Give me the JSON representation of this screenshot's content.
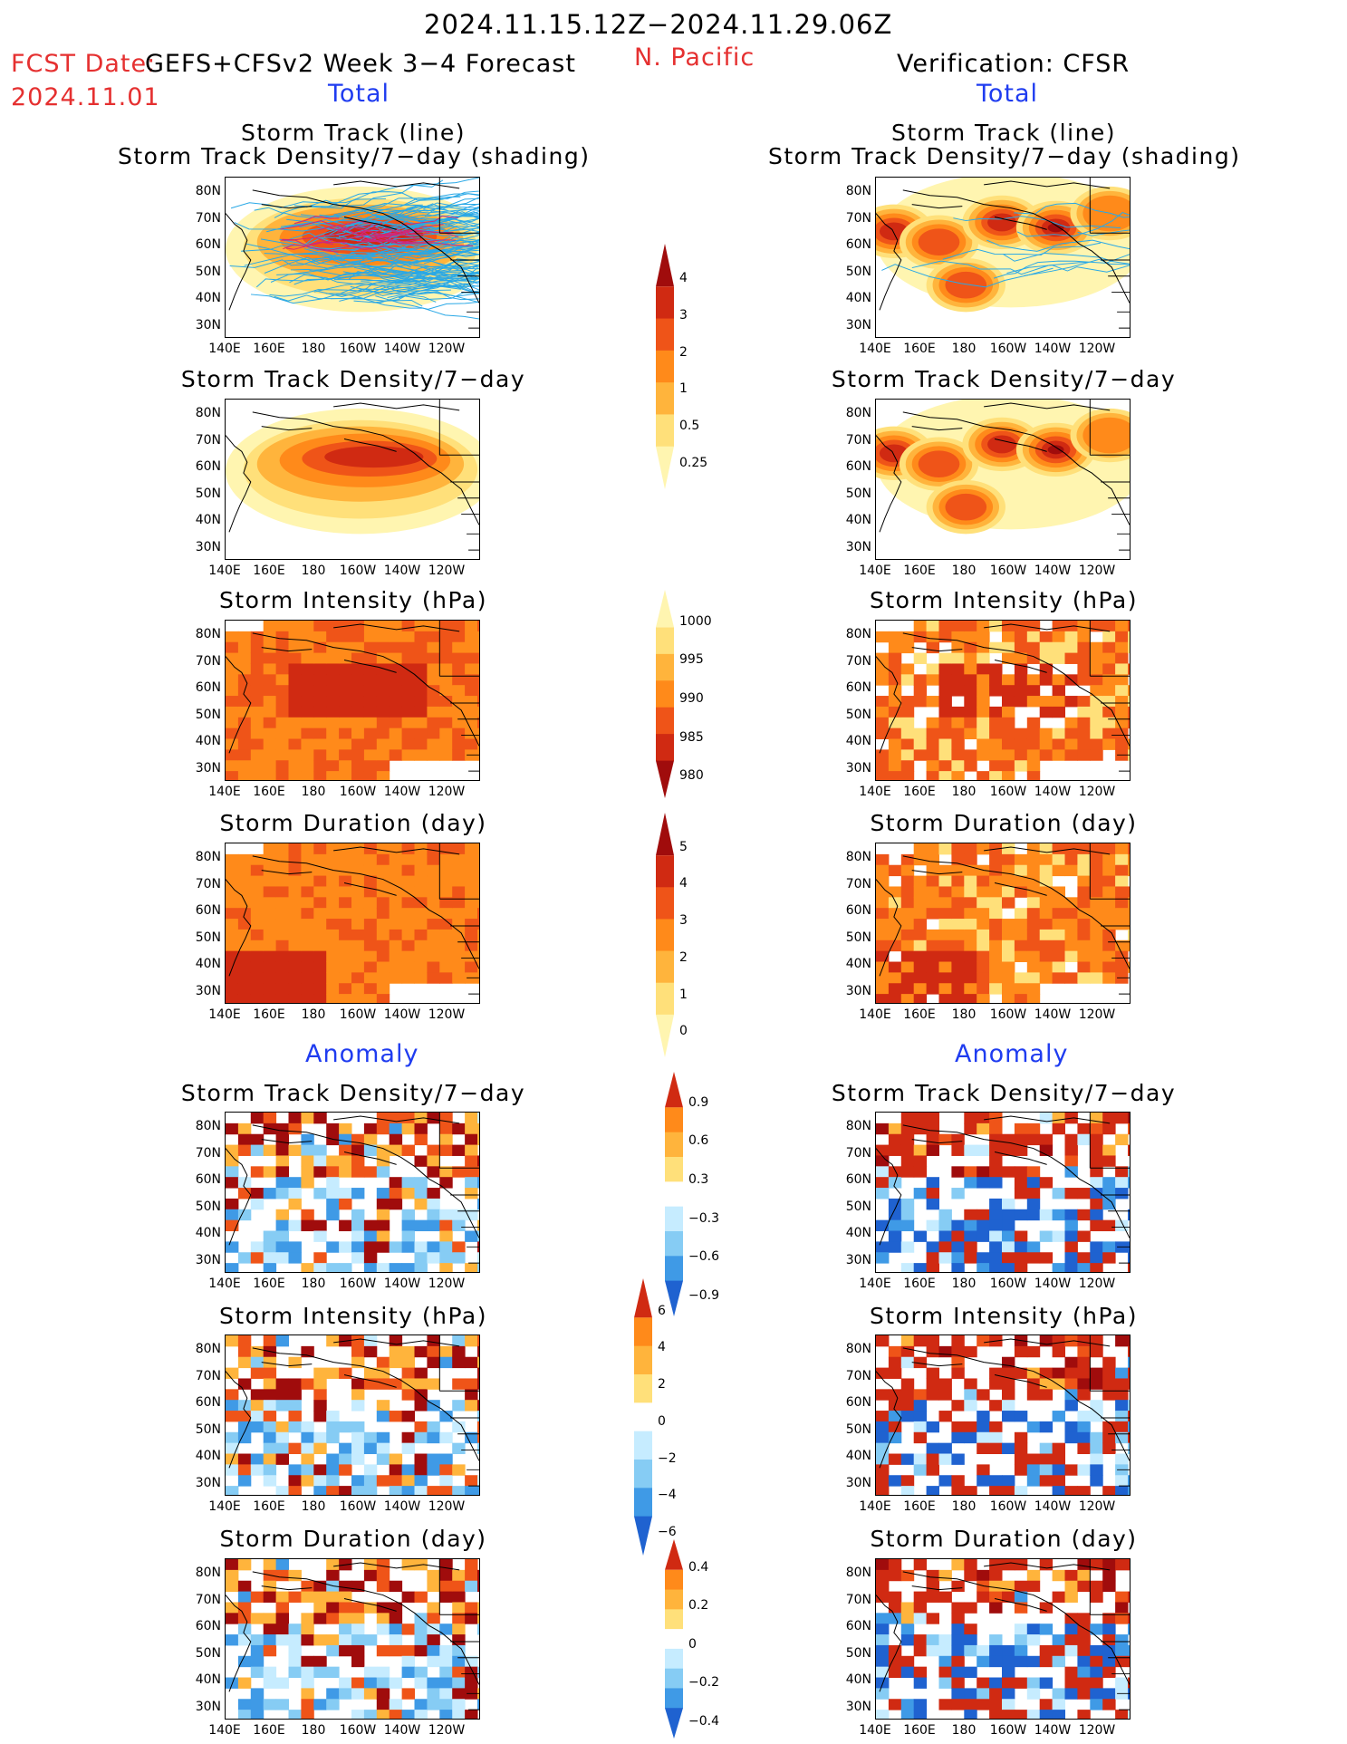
{
  "header": {
    "period": "2024.11.15.12Z−2024.11.29.06Z",
    "fcst_date_label": "FCST Date:",
    "model_label": "GEFS+CFSv2 Week 3−4 Forecast",
    "fcst_date": "2024.11.01",
    "region": "N. Pacific",
    "verification": "Verification: CFSR"
  },
  "section_labels": {
    "total": "Total",
    "anomaly": "Anomaly"
  },
  "panel_titles": {
    "track_line": "Storm Track (line)",
    "track_shading": "Storm Track Density/7−day (shading)",
    "density": "Storm Track Density/7−day",
    "intensity": "Storm Intensity (hPa)",
    "duration": "Storm Duration (day)"
  },
  "axes": {
    "lat_labels": [
      "80N",
      "70N",
      "60N",
      "50N",
      "40N",
      "30N"
    ],
    "lon_labels": [
      "140E",
      "160E",
      "180",
      "160W",
      "140W",
      "120W"
    ]
  },
  "colorbars": {
    "density_total": [
      "4",
      "3",
      "2",
      "1",
      "0.5",
      "0.25"
    ],
    "intensity_total": [
      "1000",
      "995",
      "990",
      "985",
      "980"
    ],
    "duration_total": [
      "5",
      "4",
      "3",
      "2",
      "1",
      "0"
    ],
    "density_anom": [
      "0.9",
      "0.6",
      "0.3",
      "−0.3",
      "−0.6",
      "−0.9"
    ],
    "intensity_anom": [
      "6",
      "4",
      "2",
      "0",
      "−2",
      "−4",
      "−6"
    ],
    "duration_anom": [
      "0.4",
      "0.2",
      "0",
      "−0.2",
      "−0.4"
    ]
  },
  "colors": {
    "title_red": "#e53030",
    "label_blue": "#1f3cf0",
    "warm_scale": [
      "#fff5b0",
      "#ffe07a",
      "#ffb43c",
      "#ff8a1a",
      "#ef5418",
      "#d02a12",
      "#a00c0c"
    ],
    "cool_scale": [
      "#c6ecff",
      "#86ccf4",
      "#3f9ae6",
      "#1f62d0"
    ]
  }
}
